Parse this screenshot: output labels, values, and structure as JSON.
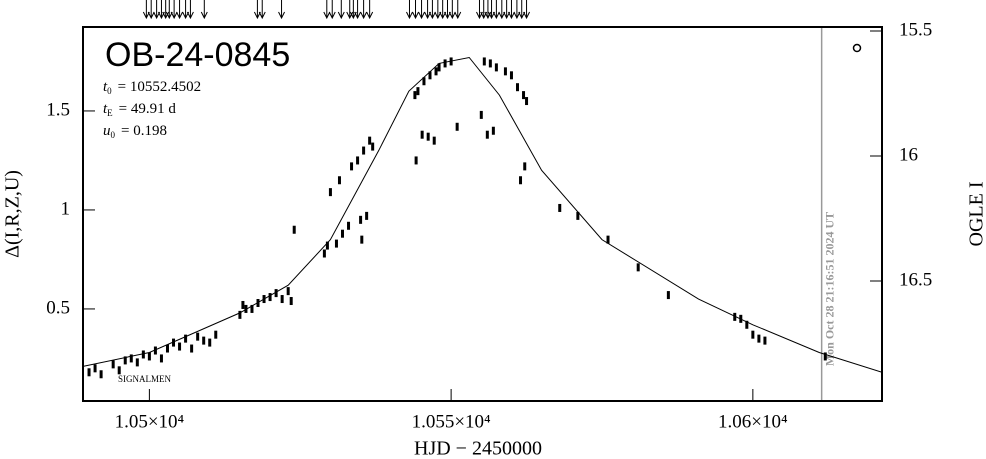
{
  "chart_data": {
    "type": "scatter",
    "title": "OB-24-0845",
    "params": [
      {
        "symbol": "t",
        "sub": "0",
        "text": "= 10552.4502"
      },
      {
        "symbol": "t",
        "sub": "E",
        "text": "= 49.91 d"
      },
      {
        "symbol": "u",
        "sub": "0",
        "text": "= 0.198"
      }
    ],
    "x_label": "HJD − 2450000",
    "y_label": "Δ(I,R,Z,U)",
    "y2_label": "OGLE I",
    "annotation": "SIGNALMEN",
    "now_label": "Mon Oct 28 21:16:51 2024 UT",
    "now_x": 10611.4,
    "xlim": [
      10489,
      10621.4
    ],
    "ylim": [
      0.035,
      1.924
    ],
    "y2lim": [
      16.98,
      15.484
    ],
    "xticks": [
      {
        "value": 10500,
        "label": "1.05×10⁴"
      },
      {
        "value": 10550,
        "label": "1.055×10⁴"
      },
      {
        "value": 10600,
        "label": "1.06×10⁴"
      }
    ],
    "yticks": [
      0.5,
      1,
      1.5
    ],
    "y2ticks": [
      15.5,
      16,
      16.5
    ],
    "obs_times": [
      10499.5,
      10500.3,
      10501.2,
      10502.0,
      10502.7,
      10503.3,
      10504.1,
      10505.0,
      10506.0,
      10506.8,
      10509.1,
      10517.9,
      10518.7,
      10521.9,
      10529.4,
      10530.3,
      10531.8,
      10533.2,
      10533.8,
      10534.5,
      10535.5,
      10536.5,
      10543.1,
      10544.1,
      10545.1,
      10546.1,
      10546.9,
      10547.8,
      10548.6,
      10549.4,
      10550.2,
      10551.1,
      10554.7,
      10555.4,
      10556.1,
      10556.7,
      10557.5,
      10558.4,
      10559.2,
      10560.0,
      10560.9,
      10561.7,
      10562.5
    ],
    "series": [
      {
        "name": "data",
        "color": "#000000",
        "x": [
          10490,
          10491,
          10492,
          10494,
          10495,
          10496,
          10497,
          10498,
          10499,
          10500,
          10501,
          10502,
          10503,
          10504,
          10505,
          10506,
          10507,
          10508,
          10509,
          10510,
          10511,
          10515,
          10515.5,
          10516,
          10517,
          10518,
          10519,
          10520,
          10521,
          10522,
          10523,
          10523.5,
          10524,
          10529,
          10529.5,
          10530,
          10531,
          10532,
          10533,
          10531.5,
          10533.5,
          10534.5,
          10535.5,
          10536.5,
          10537,
          10535,
          10536,
          10535.2,
          10544,
          10544.5,
          10545.5,
          10546.5,
          10547.5,
          10548,
          10544.2,
          10545.2,
          10546.2,
          10547.2,
          10549,
          10550,
          10551,
          10555,
          10555.5,
          10556.5,
          10557.5,
          10556,
          10557,
          10559,
          10560,
          10561,
          10562,
          10562.5,
          10561.5,
          10562.2,
          10568,
          10571,
          10576,
          10581,
          10586,
          10597,
          10598,
          10599,
          10600,
          10601,
          10602,
          10612
        ],
        "values": [
          0.18,
          0.2,
          0.17,
          0.22,
          0.19,
          0.24,
          0.25,
          0.23,
          0.27,
          0.26,
          0.29,
          0.25,
          0.3,
          0.33,
          0.31,
          0.35,
          0.3,
          0.36,
          0.34,
          0.33,
          0.37,
          0.47,
          0.52,
          0.5,
          0.5,
          0.53,
          0.55,
          0.56,
          0.58,
          0.55,
          0.59,
          0.54,
          0.9,
          0.78,
          0.82,
          1.09,
          0.83,
          0.88,
          0.92,
          1.15,
          1.22,
          1.25,
          1.3,
          1.35,
          1.32,
          0.95,
          0.97,
          0.85,
          1.58,
          1.6,
          1.65,
          1.68,
          1.7,
          1.72,
          1.25,
          1.38,
          1.37,
          1.35,
          1.74,
          1.75,
          1.42,
          1.48,
          1.75,
          1.74,
          1.72,
          1.38,
          1.4,
          1.7,
          1.68,
          1.62,
          1.58,
          1.55,
          1.15,
          1.22,
          1.01,
          0.97,
          0.85,
          0.71,
          0.57,
          0.46,
          0.45,
          0.42,
          0.37,
          0.35,
          0.34,
          0.26
        ]
      },
      {
        "name": "model",
        "color": "#000000",
        "x": [
          10489,
          10500,
          10515,
          10523,
          10530,
          10538,
          10543,
          10548,
          10553,
          10558,
          10565,
          10575,
          10591,
          10600,
          10611,
          10621.4
        ],
        "values": [
          0.21,
          0.28,
          0.48,
          0.62,
          0.85,
          1.3,
          1.6,
          1.74,
          1.77,
          1.58,
          1.2,
          0.85,
          0.55,
          0.42,
          0.28,
          0.18
        ]
      }
    ]
  }
}
